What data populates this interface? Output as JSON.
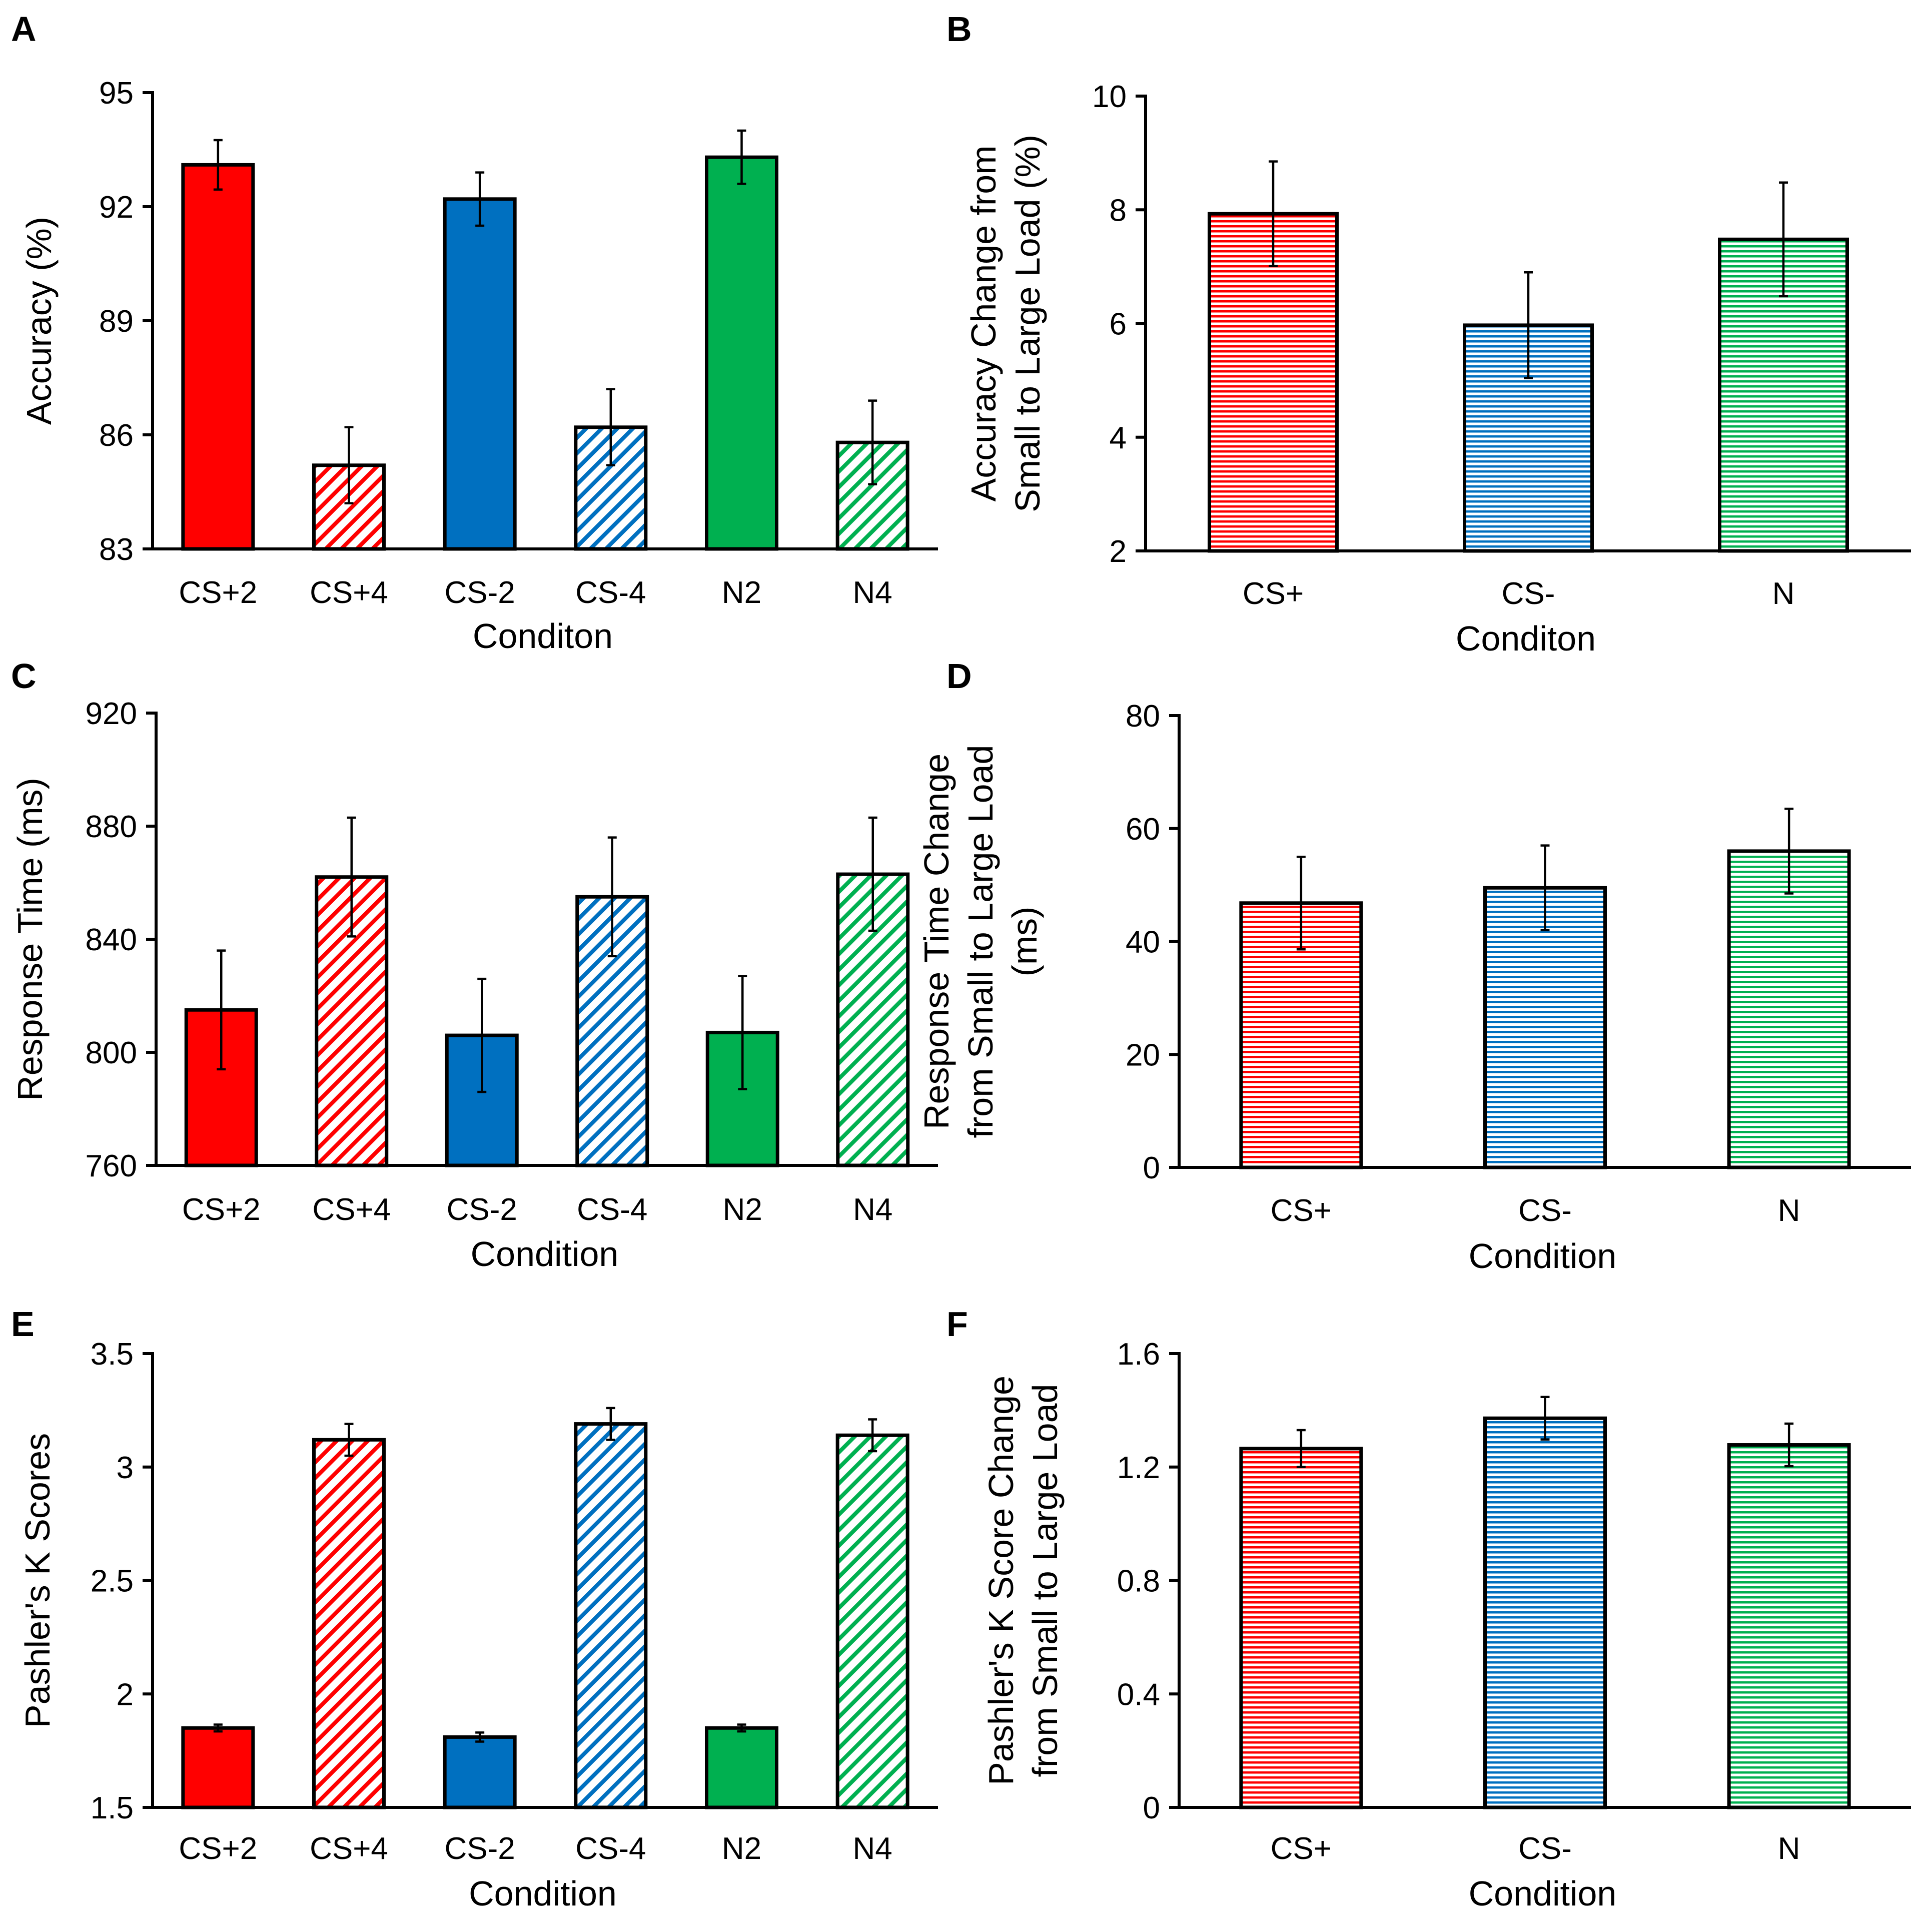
{
  "chart_data": [
    {
      "panel": "A",
      "type": "bar",
      "title": "",
      "xlabel": "Conditon",
      "ylabel": "Accuracy (%)",
      "ylim": [
        83,
        95
      ],
      "yticks": [
        83,
        86,
        89,
        92,
        95
      ],
      "ytick_labels": [
        "83",
        "86",
        "89",
        "92",
        "95"
      ],
      "categories": [
        "CS+2",
        "CS+4",
        "CS-2",
        "CS-4",
        "N2",
        "N4"
      ],
      "values": [
        93.1,
        85.2,
        92.2,
        86.2,
        93.3,
        85.8
      ],
      "errors": [
        0.65,
        1.0,
        0.7,
        1.0,
        0.7,
        1.1
      ],
      "colors": [
        "#ff0000",
        "#ff0000",
        "#0070c0",
        "#0070c0",
        "#00b050",
        "#00b050"
      ],
      "patterns": [
        "solid",
        "diagonal",
        "solid",
        "diagonal",
        "solid",
        "diagonal"
      ]
    },
    {
      "panel": "B",
      "type": "bar",
      "title": "",
      "xlabel": "Conditon",
      "ylabel": "Accuracy Change from Small to Large Load (%)",
      "ylabel_lines": [
        "Accuracy Change from",
        "Small to Large Load (%)"
      ],
      "ylim": [
        2,
        10
      ],
      "yticks": [
        2,
        4,
        6,
        8,
        10
      ],
      "ytick_labels": [
        "2",
        "4",
        "6",
        "8",
        "10"
      ],
      "categories": [
        "CS+",
        "CS-",
        "N"
      ],
      "values": [
        7.93,
        5.97,
        7.48
      ],
      "errors": [
        0.92,
        0.93,
        1.0
      ],
      "colors": [
        "#ff0000",
        "#0070c0",
        "#00b050"
      ],
      "patterns": [
        "horizontal",
        "horizontal",
        "horizontal"
      ]
    },
    {
      "panel": "C",
      "type": "bar",
      "title": "",
      "xlabel": "Condition",
      "ylabel": "Response Time (ms)",
      "ylim": [
        760,
        920
      ],
      "yticks": [
        760,
        800,
        840,
        880,
        920
      ],
      "ytick_labels": [
        "760",
        "800",
        "840",
        "880",
        "920"
      ],
      "categories": [
        "CS+2",
        "CS+4",
        "CS-2",
        "CS-4",
        "N2",
        "N4"
      ],
      "values": [
        815,
        862,
        806,
        855,
        807,
        863
      ],
      "errors": [
        21,
        21,
        20,
        21,
        20,
        20
      ],
      "colors": [
        "#ff0000",
        "#ff0000",
        "#0070c0",
        "#0070c0",
        "#00b050",
        "#00b050"
      ],
      "patterns": [
        "solid",
        "diagonal",
        "solid",
        "diagonal",
        "solid",
        "diagonal"
      ]
    },
    {
      "panel": "D",
      "type": "bar",
      "title": "",
      "xlabel": "Condition",
      "ylabel": "Response Time Change from Small to Large Load (ms)",
      "ylabel_lines": [
        "Response Time Change",
        "from Small to Large Load",
        "(ms)"
      ],
      "ylim": [
        0,
        80
      ],
      "yticks": [
        0,
        20,
        40,
        60,
        80
      ],
      "ytick_labels": [
        "0",
        "20",
        "40",
        "60",
        "80"
      ],
      "categories": [
        "CS+",
        "CS-",
        "N"
      ],
      "values": [
        46.8,
        49.5,
        56.0
      ],
      "errors": [
        8.2,
        7.5,
        7.5
      ],
      "colors": [
        "#ff0000",
        "#0070c0",
        "#00b050"
      ],
      "patterns": [
        "horizontal",
        "horizontal",
        "horizontal"
      ]
    },
    {
      "panel": "E",
      "type": "bar",
      "title": "",
      "xlabel": "Condition",
      "ylabel": "Pashler's K Scores",
      "ylim": [
        1.5,
        3.5
      ],
      "yticks": [
        1.5,
        2,
        2.5,
        3,
        3.5
      ],
      "ytick_labels": [
        "1.5",
        "2",
        "2.5",
        "3",
        "3.5"
      ],
      "categories": [
        "CS+2",
        "CS+4",
        "CS-2",
        "CS-4",
        "N2",
        "N4"
      ],
      "values": [
        1.85,
        3.12,
        1.81,
        3.19,
        1.85,
        3.14
      ],
      "errors": [
        0.015,
        0.07,
        0.02,
        0.07,
        0.015,
        0.07
      ],
      "colors": [
        "#ff0000",
        "#ff0000",
        "#0070c0",
        "#0070c0",
        "#00b050",
        "#00b050"
      ],
      "patterns": [
        "solid",
        "diagonal",
        "solid",
        "diagonal",
        "solid",
        "diagonal"
      ]
    },
    {
      "panel": "F",
      "type": "bar",
      "title": "",
      "xlabel": "Condition",
      "ylabel": "Pashler's K Score Change from Small to Large Load",
      "ylabel_lines": [
        "Pashler's K Score Change",
        "from Small to Large Load"
      ],
      "ylim": [
        0,
        1.6
      ],
      "yticks": [
        0,
        0.4,
        0.8,
        1.2,
        1.6
      ],
      "ytick_labels": [
        "0",
        "0.4",
        "0.8",
        "1.2",
        "1.6"
      ],
      "categories": [
        "CS+",
        "CS-",
        "N"
      ],
      "values": [
        1.265,
        1.372,
        1.278
      ],
      "errors": [
        0.065,
        0.075,
        0.075
      ],
      "colors": [
        "#ff0000",
        "#0070c0",
        "#00b050"
      ],
      "patterns": [
        "horizontal",
        "horizontal",
        "horizontal"
      ]
    }
  ]
}
